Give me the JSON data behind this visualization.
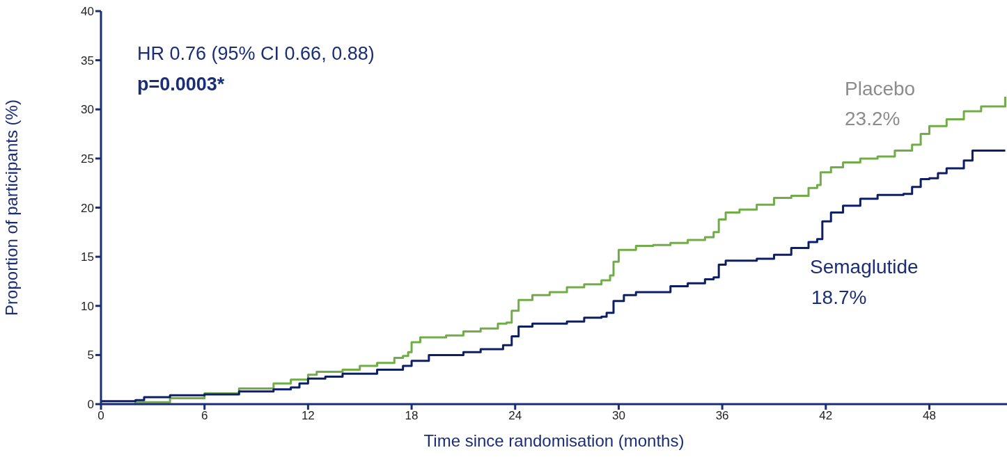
{
  "chart_data": {
    "type": "step",
    "xlabel": "Time since randomisation (months)",
    "ylabel": "Proportion of participants (%)",
    "xlim": [
      0,
      52.5
    ],
    "xticks": [
      0,
      6,
      12,
      18,
      24,
      30,
      36,
      42,
      48
    ],
    "ylim": [
      0,
      40
    ],
    "yticks": [
      0,
      5,
      10,
      15,
      20,
      25,
      30,
      35,
      40
    ],
    "grid": false,
    "legend": false,
    "annotations": [
      "HR 0.76 (95% CI 0.66, 0.88)",
      "p=0.0003*",
      "23.2%",
      "18.7%"
    ],
    "series": [
      {
        "name": "Placebo",
        "color": "#70ad47",
        "x": [
          0,
          2,
          4,
          6,
          8,
          10,
          11,
          12,
          12.5,
          14,
          15,
          16,
          17,
          17.5,
          17.8,
          18,
          18.5,
          20,
          21,
          22,
          23,
          23.5,
          23.8,
          24.2,
          25,
          26,
          27,
          28,
          29,
          29.5,
          29.7,
          30,
          31,
          32,
          33,
          34,
          35,
          35.5,
          35.8,
          36.2,
          37,
          38,
          39,
          40,
          41,
          41.5,
          41.7,
          42.3,
          43,
          44,
          45,
          46,
          47,
          47.5,
          48,
          49,
          50,
          51,
          52,
          52.4
        ],
        "values": [
          0,
          0.2,
          0.6,
          1.1,
          1.6,
          2.1,
          2.5,
          3.0,
          3.3,
          3.5,
          3.9,
          4.2,
          4.7,
          4.9,
          5.3,
          6.3,
          6.8,
          7.0,
          7.4,
          7.7,
          8.2,
          8.3,
          9.5,
          10.6,
          11.1,
          11.4,
          11.9,
          12.2,
          12.6,
          13.1,
          14.5,
          15.7,
          16.1,
          16.2,
          16.4,
          16.7,
          17.0,
          17.5,
          18.8,
          19.5,
          19.8,
          20.3,
          21.0,
          21.2,
          22.0,
          22.3,
          23.6,
          24.1,
          24.6,
          25.0,
          25.2,
          25.8,
          26.4,
          27.5,
          28.3,
          29.0,
          29.8,
          30.3,
          30.3,
          31.3
        ]
      },
      {
        "name": "Semaglutide",
        "color": "#0c1f66",
        "x": [
          0,
          2,
          2.5,
          4,
          6,
          8,
          10,
          11,
          11.5,
          12,
          13,
          14,
          16,
          17.5,
          18,
          19,
          21,
          22,
          23.3,
          23.8,
          24.2,
          25,
          27,
          28,
          29,
          29.3,
          29.7,
          30.3,
          31,
          33,
          34,
          35,
          35.5,
          35.8,
          36.2,
          38,
          39,
          40,
          41,
          41.5,
          41.8,
          42.3,
          43,
          44,
          45,
          46.5,
          47,
          47.5,
          48,
          48.5,
          49,
          50,
          50.5,
          52.4
        ],
        "values": [
          0.3,
          0.4,
          0.7,
          0.9,
          1.0,
          1.3,
          1.5,
          1.7,
          2.1,
          2.6,
          2.8,
          3.1,
          3.5,
          3.9,
          4.4,
          5.0,
          5.3,
          5.6,
          6.0,
          6.9,
          7.9,
          8.2,
          8.4,
          8.8,
          8.9,
          9.3,
          10.5,
          11.1,
          11.4,
          12.0,
          12.3,
          12.7,
          12.9,
          14.2,
          14.6,
          14.8,
          15.2,
          15.9,
          16.5,
          16.8,
          18.6,
          19.5,
          20.2,
          20.9,
          21.3,
          21.4,
          22.1,
          22.9,
          23.0,
          23.5,
          24.0,
          24.8,
          25.8,
          25.8
        ]
      }
    ]
  }
}
